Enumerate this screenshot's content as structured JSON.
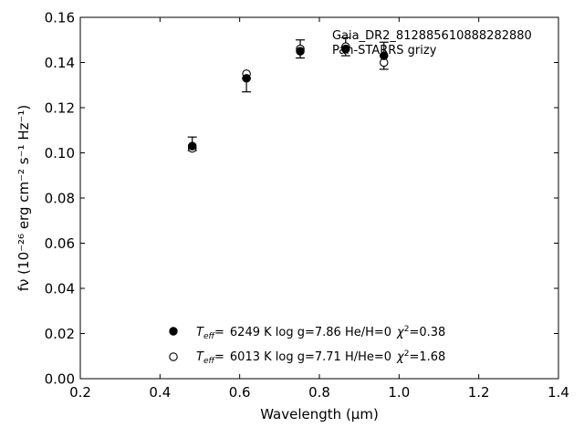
{
  "chart_data": {
    "type": "scatter",
    "title": "",
    "xlabel": "Wavelength (µm)",
    "ylabel": "fν (10⁻²⁶ erg cm⁻² s⁻¹ Hz⁻¹)",
    "xlim": [
      0.2,
      1.4
    ],
    "ylim": [
      0.0,
      0.16
    ],
    "xticks": [
      "0.2",
      "0.4",
      "0.6",
      "0.8",
      "1.0",
      "1.2",
      "1.4"
    ],
    "yticks": [
      "0.00",
      "0.02",
      "0.04",
      "0.06",
      "0.08",
      "0.10",
      "0.12",
      "0.14",
      "0.16"
    ],
    "grid": false,
    "annotation": {
      "object": "Gaia_DR2_812885610888282880",
      "survey": "Pan-STARRS grizy"
    },
    "observed": {
      "x": [
        0.481,
        0.617,
        0.752,
        0.866,
        0.962
      ],
      "y": [
        0.104,
        0.13,
        0.146,
        0.147,
        0.143
      ],
      "err": [
        0.003,
        0.003,
        0.004,
        0.004,
        0.006
      ]
    },
    "series": [
      {
        "name": "Teff= 6249 K log g=7.86 He/H=0 χ²=0.38",
        "marker": "filled-circle",
        "x": [
          0.481,
          0.617,
          0.752,
          0.866,
          0.962
        ],
        "y": [
          0.103,
          0.133,
          0.145,
          0.146,
          0.143
        ]
      },
      {
        "name": "Teff= 6013 K log g=7.71 H/He=0 χ²=1.68",
        "marker": "open-circle",
        "x": [
          0.481,
          0.617,
          0.752,
          0.866,
          0.962
        ],
        "y": [
          0.102,
          0.135,
          0.146,
          0.147,
          0.14
        ]
      }
    ],
    "legend": [
      {
        "teff_label": "T",
        "teff_sub": "eff",
        "eq": "=",
        "text": "6249 K  log g=7.86  He/H=0",
        "chi": "χ",
        "chi_sup": "2",
        "chi_val": "=0.38"
      },
      {
        "teff_label": "T",
        "teff_sub": "eff",
        "eq": "=",
        "text": "6013 K  log g=7.71  H/He=0",
        "chi": "χ",
        "chi_sup": "2",
        "chi_val": "=1.68"
      }
    ],
    "legend_position": "lower-center",
    "colors": {
      "marker": "#000000",
      "axis": "#000000"
    }
  }
}
